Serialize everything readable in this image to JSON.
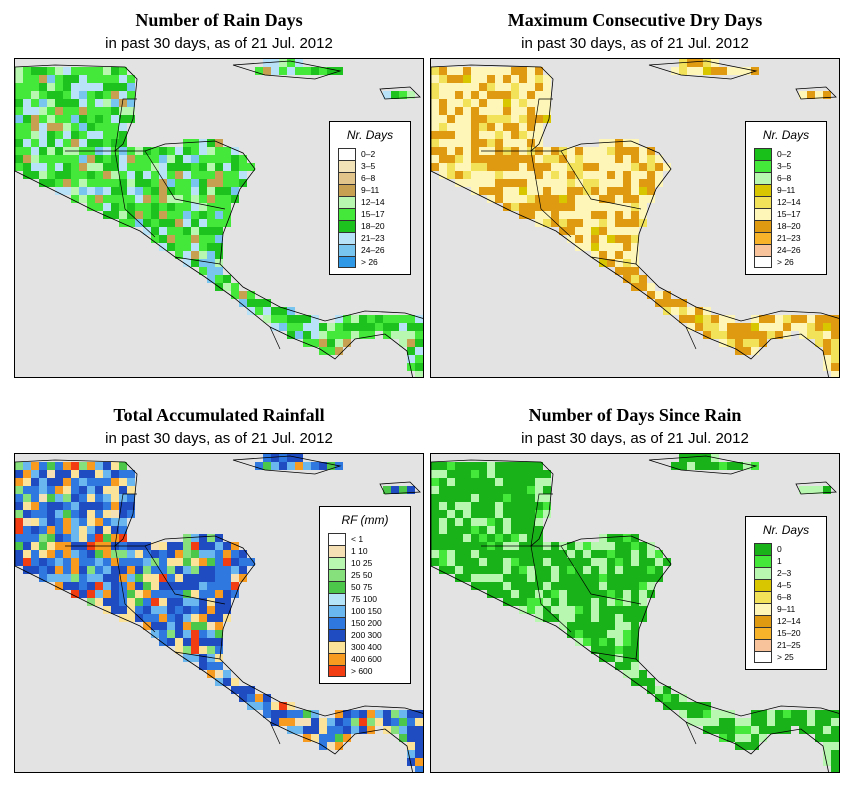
{
  "panels": [
    {
      "id": "rain-days",
      "title": "Number of Rain Days",
      "subtitle": "in past 30 days, as of  21 Jul. 2012",
      "legend_title": "Nr. Days",
      "legend": [
        {
          "label": "0–2",
          "color": "#ffffff"
        },
        {
          "label": "3–5",
          "color": "#f1e2b8"
        },
        {
          "label": "6–8",
          "color": "#e0c48a"
        },
        {
          "label": "9–11",
          "color": "#c7a052"
        },
        {
          "label": "12–14",
          "color": "#b8f7b0"
        },
        {
          "label": "15–17",
          "color": "#44e83a"
        },
        {
          "label": "18–20",
          "color": "#1ec21e"
        },
        {
          "label": "21–23",
          "color": "#b7e2f8"
        },
        {
          "label": "24–26",
          "color": "#78c6f0"
        },
        {
          "label": "> 26",
          "color": "#2e97e6"
        }
      ]
    },
    {
      "id": "max-dry-days",
      "title": "Maximum Consecutive Dry Days",
      "subtitle": "in past 30 days, as of  21 Jul. 2012",
      "legend_title": "Nr. Days",
      "legend": [
        {
          "label": "0–2",
          "color": "#19c019"
        },
        {
          "label": "3–5",
          "color": "#44e83a"
        },
        {
          "label": "6–8",
          "color": "#b8f7b0"
        },
        {
          "label": "9–11",
          "color": "#d7c600"
        },
        {
          "label": "12–14",
          "color": "#f2e25a"
        },
        {
          "label": "15–17",
          "color": "#fdf6b8"
        },
        {
          "label": "18–20",
          "color": "#e09a12"
        },
        {
          "label": "21–23",
          "color": "#f7b32a"
        },
        {
          "label": "24–26",
          "color": "#f8c39a"
        },
        {
          "label": "> 26",
          "color": "#ffffff"
        }
      ]
    },
    {
      "id": "accumulated-rainfall",
      "title": "Total Accumulated Rainfall",
      "subtitle": "in past 30 days, as of  21 Jul. 2012",
      "legend_title": "RF (mm)",
      "legend": [
        {
          "label": "< 1",
          "color": "#ffffff"
        },
        {
          "label": "1    10",
          "color": "#f5dfb4"
        },
        {
          "label": "10    25",
          "color": "#b8f7b0"
        },
        {
          "label": "25    50",
          "color": "#86e07c"
        },
        {
          "label": "50    75",
          "color": "#4cc74a"
        },
        {
          "label": "75    100",
          "color": "#b5e3f8"
        },
        {
          "label": "100    150",
          "color": "#6ab6ee"
        },
        {
          "label": "150    200",
          "color": "#2e78e0"
        },
        {
          "label": "200    300",
          "color": "#1f4cc0"
        },
        {
          "label": "300    400",
          "color": "#fbe39a"
        },
        {
          "label": "400    600",
          "color": "#f79a20"
        },
        {
          "label": "> 600",
          "color": "#f23d12"
        }
      ]
    },
    {
      "id": "days-since-rain",
      "title": "Number of Days Since Rain",
      "subtitle": "in past 30 days, as of  21 Jul. 2012",
      "legend_title": "Nr. Days",
      "legend": [
        {
          "label": "0",
          "color": "#19b219"
        },
        {
          "label": "1",
          "color": "#44e83a"
        },
        {
          "label": "2–3",
          "color": "#b8f7b0"
        },
        {
          "label": "4–5",
          "color": "#d7c600"
        },
        {
          "label": "6–8",
          "color": "#f2e25a"
        },
        {
          "label": "9–11",
          "color": "#fdf6b8"
        },
        {
          "label": "12–14",
          "color": "#e09a12"
        },
        {
          "label": "15–20",
          "color": "#f7b32a"
        },
        {
          "label": "21–25",
          "color": "#f8c39a"
        },
        {
          "label": "> 25",
          "color": "#ffffff"
        }
      ]
    }
  ]
}
